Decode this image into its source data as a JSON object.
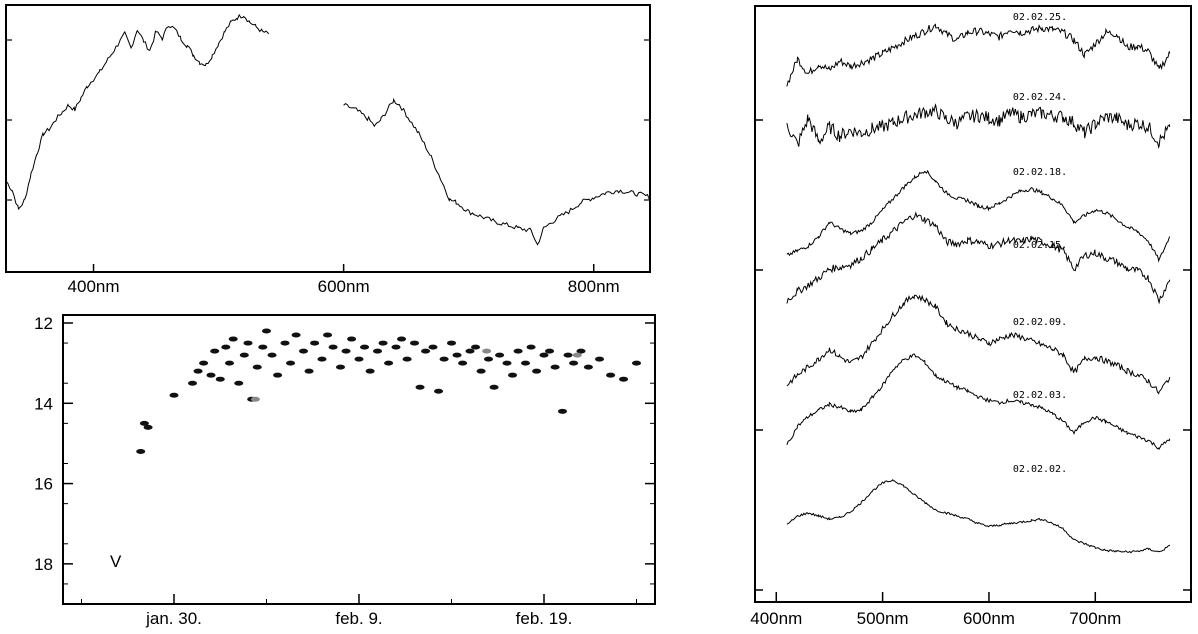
{
  "chart_data": [
    {
      "type": "line",
      "xlabel": "",
      "ylabel": "",
      "xlim": [
        330,
        845
      ],
      "ylim": [
        0,
        1
      ],
      "x_ticks": [
        {
          "value": 400,
          "label": "400nm"
        },
        {
          "value": 600,
          "label": "600nm"
        },
        {
          "value": 800,
          "label": "800nm"
        }
      ],
      "grid": false,
      "series": [
        {
          "x": [
            330,
            335,
            340,
            345,
            350,
            355,
            360,
            365,
            370,
            375,
            380,
            385,
            390,
            395,
            400,
            405,
            410,
            415,
            420,
            425,
            430,
            435,
            440,
            445,
            450,
            455,
            460,
            465,
            470,
            475,
            480,
            485,
            490,
            495,
            500,
            505,
            510,
            515,
            520,
            525,
            530,
            535,
            540
          ],
          "y": [
            0.3,
            0.26,
            0.18,
            0.22,
            0.33,
            0.42,
            0.5,
            0.52,
            0.56,
            0.59,
            0.62,
            0.6,
            0.65,
            0.7,
            0.73,
            0.76,
            0.8,
            0.84,
            0.88,
            0.92,
            0.86,
            0.94,
            0.89,
            0.85,
            0.93,
            0.9,
            0.96,
            0.94,
            0.9,
            0.87,
            0.83,
            0.8,
            0.79,
            0.83,
            0.88,
            0.93,
            0.97,
            0.99,
            1.0,
            0.97,
            0.95,
            0.93,
            0.92
          ]
        },
        {
          "x": [
            600,
            610,
            620,
            625,
            630,
            635,
            640,
            645,
            650,
            660,
            670,
            680,
            685,
            690,
            700,
            720,
            740,
            750,
            755,
            760,
            770,
            780,
            790,
            800,
            810,
            820,
            830,
            840,
            845
          ],
          "y": [
            0.62,
            0.6,
            0.56,
            0.53,
            0.56,
            0.6,
            0.64,
            0.62,
            0.58,
            0.5,
            0.4,
            0.28,
            0.22,
            0.21,
            0.17,
            0.13,
            0.1,
            0.09,
            0.03,
            0.1,
            0.14,
            0.17,
            0.21,
            0.23,
            0.25,
            0.26,
            0.25,
            0.24,
            0.23
          ]
        }
      ]
    },
    {
      "type": "scatter",
      "xlabel": "",
      "ylabel": "",
      "annotation": "V",
      "x_ticks": [
        {
          "value": 30,
          "label": "jan. 30."
        },
        {
          "value": 40,
          "label": "feb. 9."
        },
        {
          "value": 50,
          "label": "feb. 19."
        }
      ],
      "y_ticks": [
        12,
        14,
        16,
        18
      ],
      "xlim": [
        24,
        56
      ],
      "ylim": [
        19,
        12
      ],
      "y_inverted": true,
      "grid": false,
      "points": [
        [
          28.2,
          15.2
        ],
        [
          28.4,
          14.5
        ],
        [
          28.6,
          14.6
        ],
        [
          30.0,
          13.8
        ],
        [
          31.0,
          13.5
        ],
        [
          31.3,
          13.2
        ],
        [
          31.6,
          13.0
        ],
        [
          32.0,
          13.3
        ],
        [
          32.2,
          12.7
        ],
        [
          32.5,
          13.4
        ],
        [
          32.8,
          12.6
        ],
        [
          33.0,
          13.0
        ],
        [
          33.2,
          12.4
        ],
        [
          33.5,
          13.5
        ],
        [
          33.8,
          12.8
        ],
        [
          34.0,
          12.5
        ],
        [
          34.2,
          13.9
        ],
        [
          34.5,
          13.1
        ],
        [
          34.8,
          12.6
        ],
        [
          35.0,
          12.2
        ],
        [
          35.3,
          12.8
        ],
        [
          35.6,
          13.3
        ],
        [
          36.0,
          12.5
        ],
        [
          36.3,
          13.0
        ],
        [
          36.6,
          12.3
        ],
        [
          37.0,
          12.7
        ],
        [
          37.3,
          13.2
        ],
        [
          37.6,
          12.5
        ],
        [
          38.0,
          12.9
        ],
        [
          38.3,
          12.3
        ],
        [
          38.6,
          12.6
        ],
        [
          39.0,
          13.1
        ],
        [
          39.3,
          12.7
        ],
        [
          39.6,
          12.4
        ],
        [
          40.0,
          12.9
        ],
        [
          40.3,
          12.6
        ],
        [
          40.6,
          13.2
        ],
        [
          41.0,
          12.7
        ],
        [
          41.3,
          12.5
        ],
        [
          41.6,
          13.0
        ],
        [
          42.0,
          12.6
        ],
        [
          42.3,
          12.4
        ],
        [
          42.6,
          12.9
        ],
        [
          43.0,
          12.5
        ],
        [
          43.3,
          13.6
        ],
        [
          43.6,
          12.7
        ],
        [
          44.0,
          12.6
        ],
        [
          44.3,
          13.7
        ],
        [
          44.6,
          12.9
        ],
        [
          45.0,
          12.5
        ],
        [
          45.3,
          12.8
        ],
        [
          45.6,
          13.0
        ],
        [
          46.0,
          12.7
        ],
        [
          46.3,
          12.6
        ],
        [
          46.6,
          13.2
        ],
        [
          47.0,
          12.9
        ],
        [
          47.3,
          13.6
        ],
        [
          47.6,
          12.8
        ],
        [
          48.0,
          13.0
        ],
        [
          48.3,
          13.3
        ],
        [
          48.6,
          12.7
        ],
        [
          49.0,
          13.0
        ],
        [
          49.3,
          12.6
        ],
        [
          49.6,
          13.2
        ],
        [
          50.0,
          12.8
        ],
        [
          50.3,
          12.7
        ],
        [
          50.6,
          13.1
        ],
        [
          51.0,
          14.2
        ],
        [
          51.3,
          12.8
        ],
        [
          51.6,
          13.0
        ],
        [
          52.0,
          12.7
        ],
        [
          52.4,
          13.1
        ],
        [
          53.0,
          12.9
        ],
        [
          53.6,
          13.3
        ],
        [
          54.3,
          13.4
        ],
        [
          55.0,
          13.0
        ]
      ],
      "gray_points": [
        [
          34.4,
          13.9
        ],
        [
          51.8,
          12.8
        ],
        [
          46.9,
          12.7
        ]
      ]
    },
    {
      "type": "line",
      "xlabel": "",
      "ylabel": "",
      "xlim": [
        380,
        790
      ],
      "x_ticks": [
        {
          "value": 400,
          "label": "400nm"
        },
        {
          "value": 500,
          "label": "500nm"
        },
        {
          "value": 600,
          "label": "600nm"
        },
        {
          "value": 700,
          "label": "700nm"
        }
      ],
      "grid": false,
      "series": [
        {
          "name": "02.02.25.",
          "x": [
            410,
            420,
            430,
            440,
            450,
            460,
            470,
            480,
            490,
            500,
            510,
            520,
            530,
            540,
            550,
            560,
            570,
            580,
            590,
            600,
            610,
            620,
            630,
            640,
            650,
            660,
            670,
            680,
            690,
            700,
            710,
            720,
            730,
            740,
            750,
            760,
            770
          ],
          "y": [
            0.2,
            0.55,
            0.35,
            0.48,
            0.4,
            0.52,
            0.45,
            0.5,
            0.55,
            0.62,
            0.7,
            0.78,
            0.85,
            0.92,
            1.0,
            0.88,
            0.8,
            0.9,
            0.92,
            0.88,
            0.84,
            0.95,
            0.9,
            0.93,
            0.96,
            0.94,
            0.9,
            0.8,
            0.6,
            0.75,
            0.9,
            0.88,
            0.7,
            0.72,
            0.65,
            0.4,
            0.62
          ]
        },
        {
          "name": "02.02.24.",
          "x": [
            410,
            420,
            430,
            440,
            450,
            460,
            470,
            480,
            490,
            500,
            510,
            520,
            530,
            540,
            550,
            560,
            570,
            580,
            590,
            600,
            610,
            620,
            630,
            640,
            650,
            660,
            670,
            680,
            690,
            700,
            710,
            720,
            730,
            740,
            750,
            760,
            770
          ],
          "y": [
            0.6,
            0.25,
            0.7,
            0.3,
            0.55,
            0.4,
            0.5,
            0.45,
            0.52,
            0.55,
            0.62,
            0.7,
            0.75,
            0.8,
            0.82,
            0.68,
            0.62,
            0.72,
            0.74,
            0.7,
            0.66,
            0.78,
            0.72,
            0.76,
            0.78,
            0.74,
            0.72,
            0.62,
            0.45,
            0.6,
            0.72,
            0.7,
            0.58,
            0.62,
            0.55,
            0.3,
            0.55
          ]
        },
        {
          "name": "02.02.18.",
          "x": [
            410,
            420,
            430,
            440,
            450,
            460,
            470,
            480,
            490,
            500,
            510,
            520,
            530,
            540,
            550,
            560,
            570,
            580,
            590,
            600,
            610,
            620,
            630,
            640,
            650,
            660,
            670,
            680,
            690,
            700,
            710,
            720,
            730,
            740,
            750,
            760,
            770
          ],
          "y": [
            0.1,
            0.15,
            0.2,
            0.3,
            0.45,
            0.38,
            0.33,
            0.36,
            0.45,
            0.58,
            0.7,
            0.82,
            0.92,
            1.0,
            0.88,
            0.76,
            0.7,
            0.68,
            0.62,
            0.6,
            0.65,
            0.72,
            0.78,
            0.8,
            0.76,
            0.7,
            0.62,
            0.45,
            0.52,
            0.58,
            0.55,
            0.48,
            0.4,
            0.35,
            0.25,
            0.05,
            0.3
          ]
        },
        {
          "name": "02.02.15.",
          "x": [
            410,
            420,
            430,
            440,
            450,
            460,
            470,
            480,
            490,
            500,
            510,
            520,
            530,
            540,
            550,
            560,
            570,
            580,
            590,
            600,
            610,
            620,
            630,
            640,
            650,
            660,
            670,
            680,
            690,
            700,
            710,
            720,
            730,
            740,
            750,
            760,
            770
          ],
          "y": [
            0.05,
            0.15,
            0.22,
            0.3,
            0.4,
            0.42,
            0.45,
            0.52,
            0.62,
            0.72,
            0.82,
            0.92,
            1.0,
            0.95,
            0.88,
            0.7,
            0.68,
            0.72,
            0.7,
            0.66,
            0.68,
            0.72,
            0.7,
            0.74,
            0.7,
            0.66,
            0.6,
            0.4,
            0.55,
            0.58,
            0.52,
            0.48,
            0.4,
            0.38,
            0.3,
            0.05,
            0.28
          ]
        },
        {
          "name": "02.02.09.",
          "x": [
            410,
            420,
            430,
            440,
            450,
            460,
            470,
            480,
            490,
            500,
            510,
            520,
            530,
            540,
            550,
            560,
            570,
            580,
            590,
            600,
            610,
            620,
            630,
            640,
            650,
            660,
            670,
            680,
            690,
            700,
            710,
            720,
            730,
            740,
            750,
            760,
            770
          ],
          "y": [
            0.1,
            0.2,
            0.28,
            0.36,
            0.46,
            0.38,
            0.32,
            0.38,
            0.52,
            0.66,
            0.8,
            0.92,
            1.0,
            0.95,
            0.88,
            0.72,
            0.66,
            0.62,
            0.56,
            0.52,
            0.56,
            0.6,
            0.58,
            0.54,
            0.5,
            0.46,
            0.4,
            0.22,
            0.36,
            0.38,
            0.34,
            0.3,
            0.24,
            0.2,
            0.14,
            0.02,
            0.18
          ]
        },
        {
          "name": "02.02.03.",
          "x": [
            410,
            420,
            430,
            440,
            450,
            460,
            470,
            480,
            490,
            500,
            510,
            520,
            530,
            540,
            550,
            560,
            570,
            580,
            590,
            600,
            610,
            620,
            630,
            640,
            650,
            660,
            670,
            680,
            690,
            700,
            710,
            720,
            730,
            740,
            750,
            760,
            770
          ],
          "y": [
            0.05,
            0.25,
            0.35,
            0.42,
            0.48,
            0.45,
            0.4,
            0.42,
            0.55,
            0.68,
            0.85,
            0.95,
            1.0,
            0.92,
            0.78,
            0.72,
            0.66,
            0.62,
            0.56,
            0.52,
            0.5,
            0.52,
            0.5,
            0.48,
            0.44,
            0.38,
            0.3,
            0.18,
            0.3,
            0.34,
            0.3,
            0.24,
            0.18,
            0.14,
            0.1,
            0.02,
            0.12
          ]
        },
        {
          "name": "02.02.02.",
          "x": [
            410,
            420,
            430,
            440,
            450,
            460,
            470,
            480,
            490,
            500,
            510,
            520,
            530,
            540,
            550,
            560,
            570,
            580,
            590,
            600,
            610,
            620,
            630,
            640,
            650,
            660,
            670,
            680,
            690,
            700,
            710,
            720,
            730,
            740,
            750,
            760,
            770
          ],
          "y": [
            0.4,
            0.52,
            0.56,
            0.52,
            0.48,
            0.5,
            0.58,
            0.7,
            0.85,
            0.96,
            1.0,
            0.92,
            0.8,
            0.7,
            0.6,
            0.56,
            0.52,
            0.48,
            0.42,
            0.38,
            0.4,
            0.42,
            0.44,
            0.46,
            0.48,
            0.42,
            0.35,
            0.2,
            0.15,
            0.1,
            0.06,
            0.05,
            0.04,
            0.05,
            0.08,
            0.04,
            0.12
          ]
        }
      ]
    }
  ]
}
